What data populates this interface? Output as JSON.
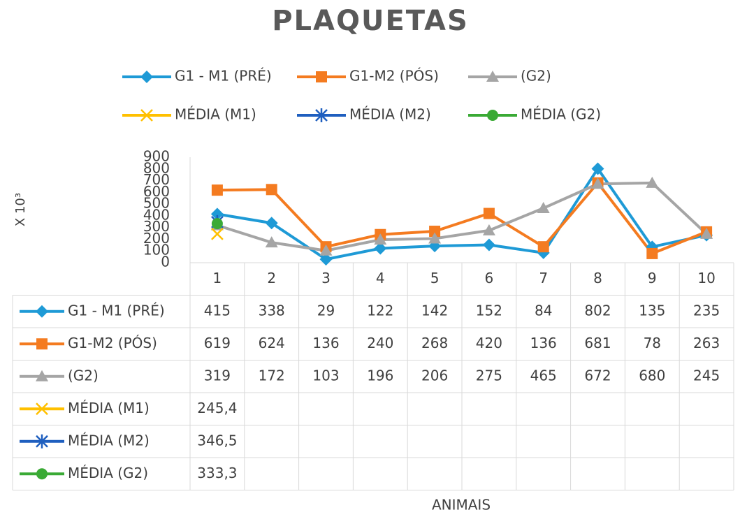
{
  "chart_data": {
    "type": "line",
    "title": "PLAQUETAS",
    "y_label": "X 10³",
    "x_label": "ANIMAIS",
    "categories": [
      "1",
      "2",
      "3",
      "4",
      "5",
      "6",
      "7",
      "8",
      "9",
      "10"
    ],
    "ylim": [
      0,
      900
    ],
    "yticks": [
      0,
      100,
      200,
      300,
      400,
      500,
      600,
      700,
      800,
      900
    ],
    "series": [
      {
        "name": "G1 - M1 (PRÉ)",
        "color": "#1e9ad6",
        "marker": "diamond",
        "values": [
          415,
          338,
          29,
          122,
          142,
          152,
          84,
          802,
          135,
          235
        ]
      },
      {
        "name": "G1-M2 (PÓS)",
        "color": "#f47b20",
        "marker": "square",
        "values": [
          619,
          624,
          136,
          240,
          268,
          420,
          136,
          681,
          78,
          263
        ]
      },
      {
        "name": "(G2)",
        "color": "#a5a5a5",
        "marker": "triangle",
        "values": [
          319,
          172,
          103,
          196,
          206,
          275,
          465,
          672,
          680,
          245
        ]
      },
      {
        "name": "MÉDIA (M1)",
        "color": "#ffc000",
        "marker": "x",
        "values": [
          245.4,
          null,
          null,
          null,
          null,
          null,
          null,
          null,
          null,
          null
        ],
        "value_labels": [
          "245,4",
          null,
          null,
          null,
          null,
          null,
          null,
          null,
          null,
          null
        ]
      },
      {
        "name": "MÉDIA (M2)",
        "color": "#1f5fbf",
        "marker": "star",
        "values": [
          346.5,
          null,
          null,
          null,
          null,
          null,
          null,
          null,
          null,
          null
        ],
        "value_labels": [
          "346,5",
          null,
          null,
          null,
          null,
          null,
          null,
          null,
          null,
          null
        ]
      },
      {
        "name": "MÉDIA (G2)",
        "color": "#3aaa35",
        "marker": "circle",
        "values": [
          333.3,
          null,
          null,
          null,
          null,
          null,
          null,
          null,
          null,
          null
        ],
        "value_labels": [
          "333,3",
          null,
          null,
          null,
          null,
          null,
          null,
          null,
          null,
          null
        ]
      }
    ]
  }
}
